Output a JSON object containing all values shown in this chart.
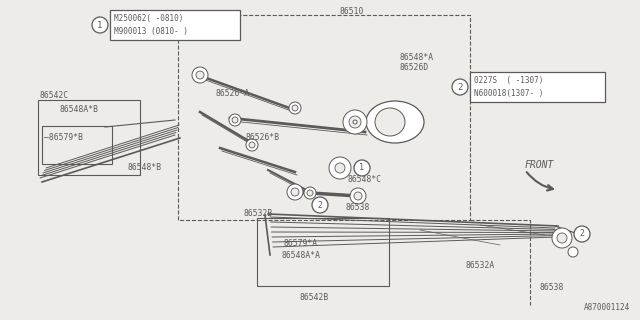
{
  "bg_color": "#eeece8",
  "line_color": "#5a5a5a",
  "fig_w": 6.4,
  "fig_h": 3.2,
  "dpi": 100,
  "box1_line1": "M250062( -0810)",
  "box1_line2": "M900013 (0810- )",
  "box1_circle_num": "1",
  "box2_line1": "0227S  ( -1307)",
  "box2_line2": "N600018(1307- )",
  "box2_circle_num": "2",
  "watermark": "A870001124"
}
